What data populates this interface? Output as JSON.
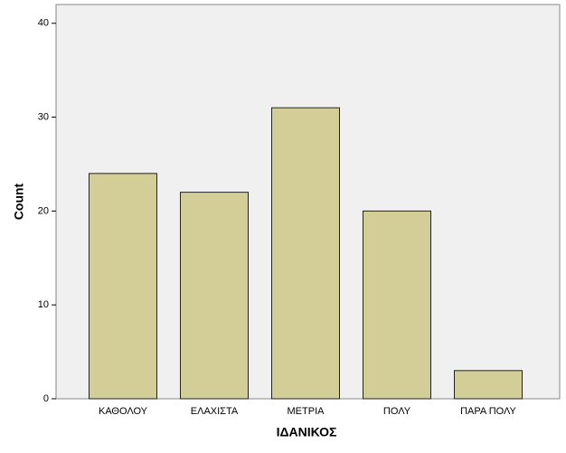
{
  "chart_data": {
    "type": "bar",
    "x_label": "ΙΔΑΝΙΚΟΣ",
    "y_label": "Count",
    "categories": [
      "ΚΑΘΟΛΟΥ",
      "ΕΛΑΧΙΣΤΑ",
      "ΜΕΤΡΙΑ",
      "ΠΟΛΥ",
      "ΠΑΡΑ ΠΟΛΥ"
    ],
    "values": [
      24,
      22,
      31,
      20,
      3
    ],
    "color": "#d3ce98",
    "ylim": [
      0,
      42
    ],
    "yticks": [
      0,
      10,
      20,
      30,
      40
    ],
    "grid": false
  }
}
